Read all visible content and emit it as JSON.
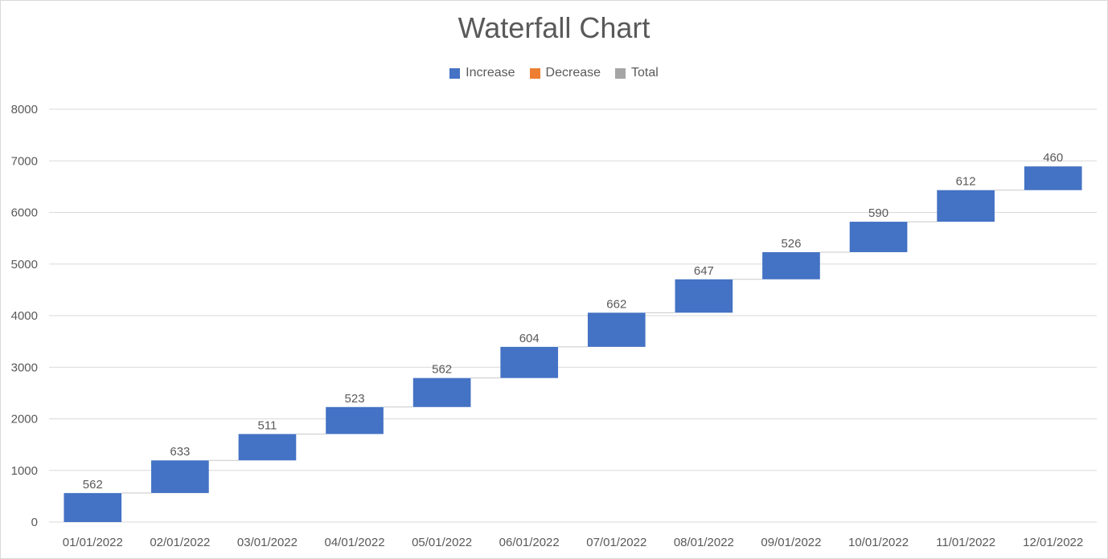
{
  "chart_data": {
    "type": "bar",
    "subtype": "waterfall",
    "title": "Waterfall Chart",
    "legend": [
      {
        "name": "Increase",
        "color": "#4472c4"
      },
      {
        "name": "Decrease",
        "color": "#ed7d31"
      },
      {
        "name": "Total",
        "color": "#a5a5a5"
      }
    ],
    "legend_position": "top",
    "categories": [
      "01/01/2022",
      "02/01/2022",
      "03/01/2022",
      "04/01/2022",
      "05/01/2022",
      "06/01/2022",
      "07/01/2022",
      "08/01/2022",
      "09/01/2022",
      "10/01/2022",
      "11/01/2022",
      "12/01/2022"
    ],
    "values": [
      562,
      633,
      511,
      523,
      562,
      604,
      662,
      647,
      526,
      590,
      612,
      460
    ],
    "ylim": [
      0,
      8000
    ],
    "yticks": [
      0,
      1000,
      2000,
      3000,
      4000,
      5000,
      6000,
      7000,
      8000
    ],
    "grid": true,
    "xlabel": "",
    "ylabel": ""
  }
}
